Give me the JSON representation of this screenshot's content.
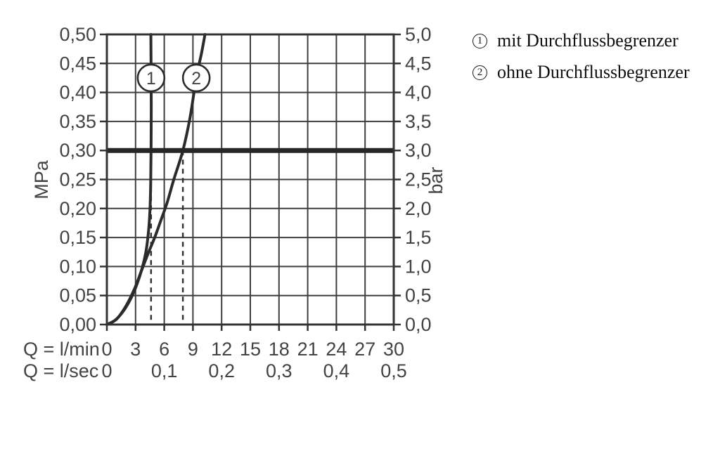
{
  "page": {
    "background": "#ffffff"
  },
  "legend": {
    "items": [
      {
        "symbol": "1",
        "label": "mit Durchflussbegrenzer"
      },
      {
        "symbol": "2",
        "label": "ohne Durchflussbegrenzer"
      }
    ]
  },
  "chart_data": {
    "type": "line",
    "title": "",
    "description": "Flow rate vs pressure diagram with and without flow limiter",
    "grid": true,
    "x_axis": {
      "min": 0,
      "max": 30,
      "grid_step": 3,
      "rows": [
        {
          "label": "Q = l/min",
          "ticks": [
            {
              "q": 0,
              "text": "0"
            },
            {
              "q": 3,
              "text": "3"
            },
            {
              "q": 6,
              "text": "6"
            },
            {
              "q": 9,
              "text": "9"
            },
            {
              "q": 12,
              "text": "12"
            },
            {
              "q": 15,
              "text": "15"
            },
            {
              "q": 18,
              "text": "18"
            },
            {
              "q": 21,
              "text": "21"
            },
            {
              "q": 24,
              "text": "24"
            },
            {
              "q": 27,
              "text": "27"
            },
            {
              "q": 30,
              "text": "30"
            }
          ]
        },
        {
          "label": "Q = l/sec",
          "ticks": [
            {
              "q": 0,
              "text": "0"
            },
            {
              "q": 6,
              "text": "0,1"
            },
            {
              "q": 12,
              "text": "0,2"
            },
            {
              "q": 18,
              "text": "0,3"
            },
            {
              "q": 24,
              "text": "0,4"
            },
            {
              "q": 30,
              "text": "0,5"
            }
          ]
        }
      ]
    },
    "y_axis_left": {
      "label": "MPa",
      "min": 0,
      "max": 0.5,
      "step": 0.05,
      "tick_labels": [
        "0,00",
        "0,05",
        "0,10",
        "0,15",
        "0,20",
        "0,25",
        "0,30",
        "0,35",
        "0,40",
        "0,45",
        "0,50"
      ]
    },
    "y_axis_right": {
      "label": "bar",
      "min": 0,
      "max": 5,
      "step": 0.5,
      "tick_labels": [
        "0,0",
        "0,5",
        "1,0",
        "1,5",
        "2,0",
        "2,5",
        "3,0",
        "3,5",
        "4,0",
        "4,5",
        "5,0"
      ]
    },
    "series": [
      {
        "name": "1",
        "label": "mit Durchflussbegrenzer",
        "marker": {
          "text": "1",
          "q": 4.62,
          "p": 0.425
        },
        "points": [
          [
            0,
            0
          ],
          [
            0.9,
            0.008
          ],
          [
            1.8,
            0.025
          ],
          [
            2.6,
            0.048
          ],
          [
            3.2,
            0.072
          ],
          [
            3.7,
            0.098
          ],
          [
            4.1,
            0.127
          ],
          [
            4.35,
            0.16
          ],
          [
            4.5,
            0.195
          ],
          [
            4.58,
            0.24
          ],
          [
            4.62,
            0.3
          ],
          [
            4.64,
            0.38
          ],
          [
            4.62,
            0.45
          ],
          [
            4.6,
            0.5
          ]
        ]
      },
      {
        "name": "2",
        "label": "ohne Durchflussbegrenzer",
        "marker": {
          "text": "2",
          "q": 9.35,
          "p": 0.425
        },
        "points": [
          [
            0,
            0
          ],
          [
            1.0,
            0.009
          ],
          [
            2.0,
            0.032
          ],
          [
            2.9,
            0.062
          ],
          [
            3.6,
            0.092
          ],
          [
            4.3,
            0.122
          ],
          [
            5.0,
            0.15
          ],
          [
            5.7,
            0.182
          ],
          [
            6.3,
            0.21
          ],
          [
            7.0,
            0.25
          ],
          [
            7.95,
            0.3
          ],
          [
            8.7,
            0.357
          ],
          [
            9.35,
            0.425
          ],
          [
            9.9,
            0.468
          ],
          [
            10.26,
            0.5
          ]
        ]
      }
    ],
    "reference_line": {
      "p_mpa": 0.3,
      "p_bar": 3.0
    },
    "drop_lines": [
      {
        "q": 4.62
      },
      {
        "q": 7.95
      }
    ],
    "colors": {
      "grid": "#3f3f3f",
      "border": "#333333",
      "curve": "#2b2b2b",
      "reference": "#262626",
      "dashed": "#333333",
      "axis_text": "#434343",
      "marker_fill": "#ffffff",
      "background": "#ffffff"
    }
  }
}
